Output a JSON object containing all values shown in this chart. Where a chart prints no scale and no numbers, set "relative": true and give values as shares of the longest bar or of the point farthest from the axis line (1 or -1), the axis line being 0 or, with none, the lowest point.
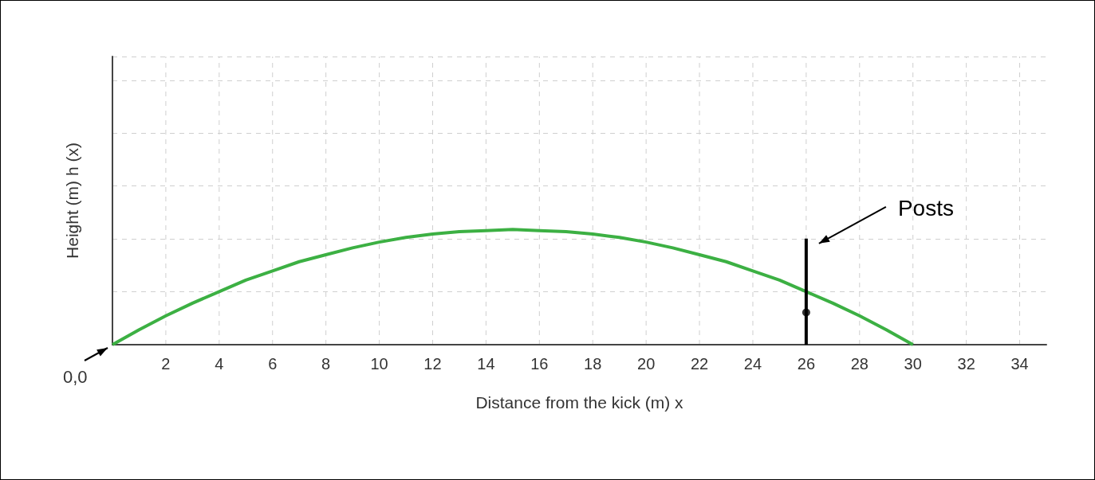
{
  "chart_data": {
    "type": "line",
    "xlabel": "Distance from the kick (m) x",
    "ylabel": "Height (m) h (x)",
    "relative": true,
    "series": [
      {
        "type": "line",
        "color": "#3cb043",
        "x": [
          0,
          1,
          2,
          3,
          4,
          5,
          6,
          7,
          8,
          9,
          10,
          11,
          12,
          13,
          14,
          15,
          16,
          17,
          18,
          19,
          20,
          21,
          22,
          23,
          24,
          25,
          26,
          27,
          28,
          29,
          30
        ],
        "values": [
          0,
          0.13,
          0.25,
          0.36,
          0.46,
          0.56,
          0.64,
          0.72,
          0.78,
          0.84,
          0.89,
          0.93,
          0.96,
          0.98,
          0.99,
          1,
          0.99,
          0.98,
          0.96,
          0.93,
          0.89,
          0.84,
          0.78,
          0.72,
          0.64,
          0.56,
          0.46,
          0.36,
          0.25,
          0.13,
          0
        ]
      },
      {
        "type": "line",
        "color": "#000000",
        "x": [
          26,
          26
        ],
        "values": [
          0,
          0.92
        ]
      },
      {
        "type": "scatter",
        "color": "#000000",
        "x": [
          26
        ],
        "values": [
          0.28
        ],
        "marker": "circle"
      }
    ],
    "xlim": [
      0,
      35
    ],
    "xticks": [
      {
        "value": 0,
        "label": null
      },
      2,
      4,
      6,
      8,
      10,
      12,
      14,
      16,
      18,
      20,
      22,
      24,
      26,
      28,
      30,
      32,
      34
    ],
    "annotations": [
      "Posts",
      "0,0"
    ],
    "grid": true
  }
}
